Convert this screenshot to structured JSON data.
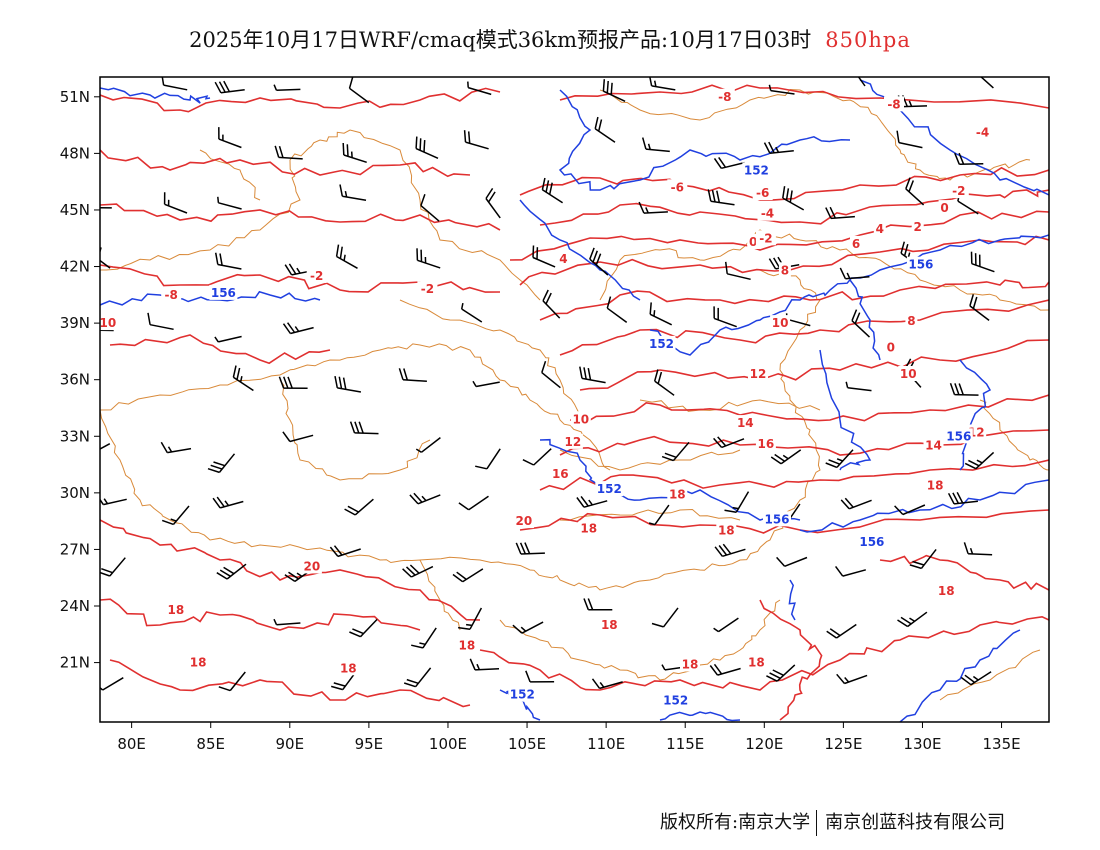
{
  "header": {
    "title": "2025年10月17日WRF/cmaq模式36km预报产品:10月17日03时",
    "level": "850hpa"
  },
  "map": {
    "lon_ticks": [
      "80E",
      "85E",
      "90E",
      "95E",
      "100E",
      "105E",
      "110E",
      "115E",
      "120E",
      "125E",
      "130E",
      "135E"
    ],
    "lat_ticks": [
      "51N",
      "48N",
      "45N",
      "42N",
      "39N",
      "36N",
      "33N",
      "30N",
      "27N",
      "24N",
      "21N"
    ],
    "colors": {
      "temperature": "#e03030",
      "height": "#2040e0",
      "border": "#d98a3a",
      "frame": "#000000"
    },
    "temperature_labels": [
      {
        "text": "-8",
        "lon": 117.5,
        "lat": 51.0
      },
      {
        "text": "-8",
        "lon": 128.2,
        "lat": 50.6
      },
      {
        "text": "-4",
        "lon": 133.8,
        "lat": 49.1
      },
      {
        "text": "-6",
        "lon": 114.5,
        "lat": 46.2
      },
      {
        "text": "-6",
        "lon": 119.9,
        "lat": 45.9
      },
      {
        "text": "-4",
        "lon": 120.2,
        "lat": 44.8
      },
      {
        "text": "-2",
        "lon": 132.3,
        "lat": 46.0
      },
      {
        "text": "0",
        "lon": 131.4,
        "lat": 45.1
      },
      {
        "text": "2",
        "lon": 129.7,
        "lat": 44.1
      },
      {
        "text": "4",
        "lon": 127.3,
        "lat": 44.0
      },
      {
        "text": "0",
        "lon": 119.3,
        "lat": 43.3
      },
      {
        "text": "-2",
        "lon": 120.1,
        "lat": 43.5
      },
      {
        "text": "6",
        "lon": 125.8,
        "lat": 43.2
      },
      {
        "text": "8",
        "lon": 121.3,
        "lat": 41.8
      },
      {
        "text": "4",
        "lon": 107.3,
        "lat": 42.4
      },
      {
        "text": "-2",
        "lon": 91.7,
        "lat": 41.5
      },
      {
        "text": "-2",
        "lon": 98.7,
        "lat": 40.8
      },
      {
        "text": "-8",
        "lon": 82.5,
        "lat": 40.5
      },
      {
        "text": "10",
        "lon": 78.5,
        "lat": 39.0
      },
      {
        "text": "10",
        "lon": 121.0,
        "lat": 39.0
      },
      {
        "text": "8",
        "lon": 129.3,
        "lat": 39.1
      },
      {
        "text": "0",
        "lon": 128.0,
        "lat": 37.7
      },
      {
        "text": "10",
        "lon": 129.1,
        "lat": 36.3
      },
      {
        "text": "12",
        "lon": 119.6,
        "lat": 36.3
      },
      {
        "text": "10",
        "lon": 108.4,
        "lat": 33.9
      },
      {
        "text": "12",
        "lon": 107.9,
        "lat": 32.7
      },
      {
        "text": "14",
        "lon": 118.8,
        "lat": 33.7
      },
      {
        "text": "16",
        "lon": 120.1,
        "lat": 32.6
      },
      {
        "text": "14",
        "lon": 130.7,
        "lat": 32.5
      },
      {
        "text": "12",
        "lon": 133.4,
        "lat": 33.2
      },
      {
        "text": "16",
        "lon": 107.1,
        "lat": 31.0
      },
      {
        "text": "18",
        "lon": 130.8,
        "lat": 30.4
      },
      {
        "text": "18",
        "lon": 114.5,
        "lat": 29.9
      },
      {
        "text": "20",
        "lon": 104.8,
        "lat": 28.5
      },
      {
        "text": "18",
        "lon": 108.9,
        "lat": 28.1
      },
      {
        "text": "18",
        "lon": 117.6,
        "lat": 28.0
      },
      {
        "text": "20",
        "lon": 91.4,
        "lat": 26.1
      },
      {
        "text": "18",
        "lon": 82.8,
        "lat": 23.8
      },
      {
        "text": "18",
        "lon": 131.5,
        "lat": 24.8
      },
      {
        "text": "18",
        "lon": 110.2,
        "lat": 23.0
      },
      {
        "text": "18",
        "lon": 84.2,
        "lat": 21.0
      },
      {
        "text": "18",
        "lon": 93.7,
        "lat": 20.7
      },
      {
        "text": "18",
        "lon": 101.2,
        "lat": 21.9
      },
      {
        "text": "18",
        "lon": 115.3,
        "lat": 20.9
      },
      {
        "text": "18",
        "lon": 119.5,
        "lat": 21.0
      }
    ],
    "height_labels": [
      {
        "text": "152",
        "lon": 119.5,
        "lat": 47.1
      },
      {
        "text": "156",
        "lon": 129.9,
        "lat": 42.1
      },
      {
        "text": "156",
        "lon": 85.8,
        "lat": 40.6
      },
      {
        "text": "152",
        "lon": 113.5,
        "lat": 37.9
      },
      {
        "text": "156",
        "lon": 132.3,
        "lat": 33.0
      },
      {
        "text": "152",
        "lon": 110.2,
        "lat": 30.2
      },
      {
        "text": "156",
        "lon": 120.8,
        "lat": 28.6
      },
      {
        "text": "156",
        "lon": 126.8,
        "lat": 27.4
      },
      {
        "text": "152",
        "lon": 104.7,
        "lat": 19.3
      },
      {
        "text": "152",
        "lon": 114.4,
        "lat": 19.0
      }
    ]
  },
  "footer": {
    "left": "版权所有:南京大学",
    "right": "南京创蓝科技有限公司"
  }
}
